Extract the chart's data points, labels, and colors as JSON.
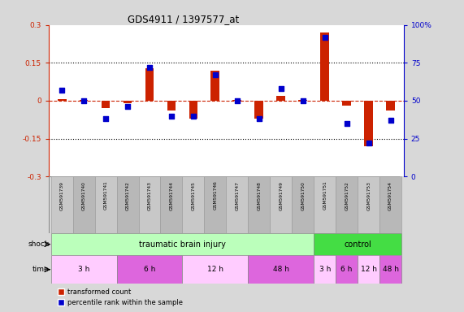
{
  "title": "GDS4911 / 1397577_at",
  "samples": [
    "GSM591739",
    "GSM591740",
    "GSM591741",
    "GSM591742",
    "GSM591743",
    "GSM591744",
    "GSM591745",
    "GSM591746",
    "GSM591747",
    "GSM591748",
    "GSM591749",
    "GSM591750",
    "GSM591751",
    "GSM591752",
    "GSM591753",
    "GSM591754"
  ],
  "red_values": [
    0.005,
    0.003,
    -0.03,
    -0.01,
    0.13,
    -0.04,
    -0.07,
    0.12,
    0.003,
    -0.07,
    0.02,
    0.003,
    0.27,
    -0.02,
    -0.18,
    -0.04
  ],
  "blue_values_pct": [
    57,
    50,
    38,
    46,
    72,
    40,
    40,
    67,
    50,
    38,
    58,
    50,
    92,
    35,
    22,
    37
  ],
  "ylim_left": [
    -0.3,
    0.3
  ],
  "ylim_right": [
    0,
    100
  ],
  "yticks_left": [
    -0.3,
    -0.15,
    0,
    0.15,
    0.3
  ],
  "yticks_right": [
    0,
    25,
    50,
    75,
    100
  ],
  "ytick_labels_left": [
    "-0.3",
    "-0.15",
    "0",
    "0.15",
    "0.3"
  ],
  "ytick_labels_right": [
    "0",
    "25",
    "50",
    "75",
    "100%"
  ],
  "dotted_lines": [
    -0.15,
    0.15
  ],
  "bar_width": 0.4,
  "red_color": "#cc2200",
  "blue_color": "#0000cc",
  "shock_row": [
    {
      "label": "traumatic brain injury",
      "start": 0,
      "end": 12,
      "color": "#bbffbb"
    },
    {
      "label": "control",
      "start": 12,
      "end": 16,
      "color": "#44dd44"
    }
  ],
  "time_row": [
    {
      "label": "3 h",
      "start": 0,
      "end": 3,
      "color": "#ffccff"
    },
    {
      "label": "6 h",
      "start": 3,
      "end": 6,
      "color": "#dd66dd"
    },
    {
      "label": "12 h",
      "start": 6,
      "end": 9,
      "color": "#ffccff"
    },
    {
      "label": "48 h",
      "start": 9,
      "end": 12,
      "color": "#dd66dd"
    },
    {
      "label": "3 h",
      "start": 12,
      "end": 13,
      "color": "#ffccff"
    },
    {
      "label": "6 h",
      "start": 13,
      "end": 14,
      "color": "#dd66dd"
    },
    {
      "label": "12 h",
      "start": 14,
      "end": 15,
      "color": "#ffccff"
    },
    {
      "label": "48 h",
      "start": 15,
      "end": 16,
      "color": "#dd66dd"
    }
  ],
  "shock_label": "shock",
  "time_label": "time",
  "legend_red": "transformed count",
  "legend_blue": "percentile rank within the sample",
  "bg_color": "#d8d8d8",
  "plot_bg": "#ffffff",
  "label_bg_even": "#c8c8c8",
  "label_bg_odd": "#b8b8b8"
}
